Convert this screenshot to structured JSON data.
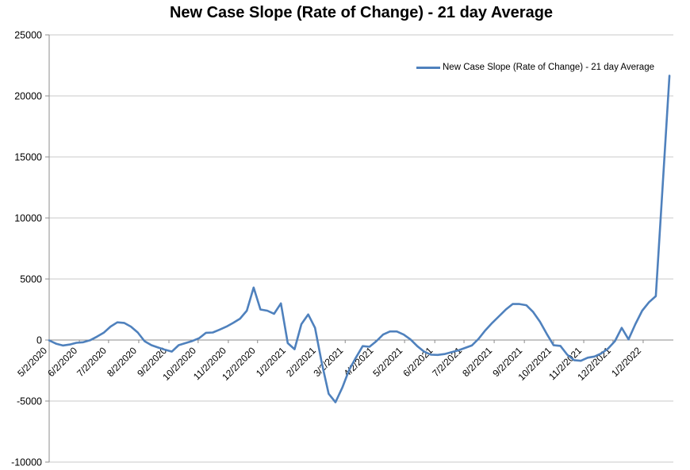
{
  "chart": {
    "title": "New Case Slope (Rate of Change) - 21 day Average",
    "legend": {
      "label": "New Case Slope (Rate of Change) - 21 day Average",
      "swatch_color": "#4F81BD"
    }
  },
  "chart_data": {
    "type": "line",
    "title": "New Case Slope (Rate of Change) - 21 day Average",
    "grid": "horizontal",
    "legend_position": "top-right-inside",
    "colors": {
      "series": "#4F81BD",
      "gridline": "#c9c9c9",
      "axis": "#8c8c8c",
      "background": "#ffffff"
    },
    "y_axis": {
      "min": -10000,
      "max": 25000,
      "step": 5000,
      "ticks": [
        25000,
        20000,
        15000,
        10000,
        5000,
        0,
        -5000,
        -10000
      ]
    },
    "x_axis": {
      "min_date": "5/2/2020",
      "max_date": "2/2/2022",
      "tick_labels": [
        "5/2/2020",
        "6/2/2020",
        "7/2/2020",
        "8/2/2020",
        "9/2/2020",
        "10/2/2020",
        "11/2/2020",
        "12/2/2020",
        "1/2/2021",
        "2/2/2021",
        "3/2/2021",
        "4/2/2021",
        "5/2/2021",
        "6/2/2021",
        "7/2/2021",
        "8/2/2021",
        "9/2/2021",
        "10/2/2021",
        "11/2/2021",
        "12/2/2021",
        "1/2/2022"
      ]
    },
    "series": [
      {
        "name": "New Case Slope (Rate of Change) - 21 day Average",
        "color": "#4F81BD",
        "start_date": "5/2/2020",
        "interval_days": 7,
        "values": [
          -30,
          -300,
          -450,
          -370,
          -230,
          -180,
          -20,
          270,
          600,
          1100,
          1450,
          1400,
          1100,
          620,
          -100,
          -420,
          -620,
          -800,
          -950,
          -420,
          -250,
          -80,
          150,
          590,
          620,
          850,
          1100,
          1400,
          1750,
          2400,
          4300,
          2500,
          2400,
          2150,
          3000,
          -250,
          -750,
          1300,
          2100,
          1000,
          -1900,
          -4400,
          -5100,
          -3900,
          -2450,
          -1450,
          -500,
          -550,
          -100,
          450,
          700,
          700,
          450,
          50,
          -500,
          -950,
          -1200,
          -1220,
          -1150,
          -1000,
          -850,
          -650,
          -450,
          100,
          800,
          1400,
          1950,
          2500,
          2950,
          2950,
          2850,
          2300,
          1500,
          500,
          -430,
          -480,
          -1200,
          -1650,
          -1700,
          -1450,
          -1350,
          -1100,
          -700,
          -100,
          1000,
          50,
          1300,
          2400,
          3100,
          3600,
          12600,
          21650
        ]
      }
    ]
  }
}
